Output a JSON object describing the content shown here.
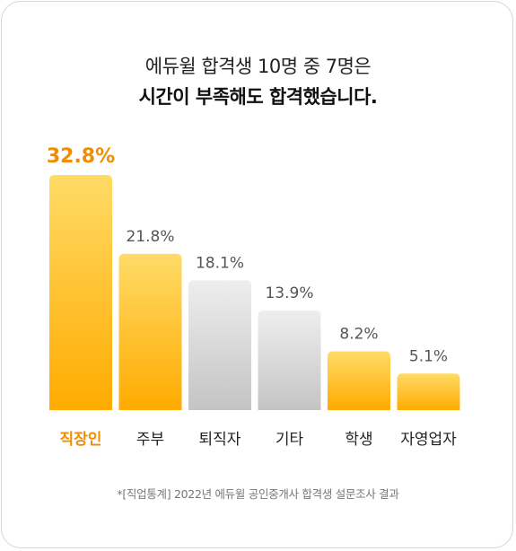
{
  "title_line1": "에듀윌 합격생 10명 중 7명은",
  "title_line2": "시간이 부족해도 합격했습니다.",
  "footnote": "*[직업통계] 2022년 에듀윌 공인중개사 합격생 설문조사 결과",
  "colors": {
    "highlight_text": "#f28c00",
    "value_text": "#555555",
    "label_text": "#222222",
    "yellow_top": "#ffdb66",
    "yellow_bottom": "#ffab00",
    "gray_top": "#eeeeee",
    "gray_bottom": "#c4c4c4"
  },
  "chart_data": {
    "type": "bar",
    "categories": [
      "직장인",
      "주부",
      "퇴직자",
      "기타",
      "학생",
      "자영업자"
    ],
    "values": [
      32.8,
      21.8,
      18.1,
      13.9,
      8.2,
      5.1
    ],
    "value_labels": [
      "32.8%",
      "21.8%",
      "18.1%",
      "13.9%",
      "8.2%",
      "5.1%"
    ],
    "bar_colors": [
      "yellow",
      "yellow",
      "gray",
      "gray",
      "yellow",
      "yellow"
    ],
    "highlight_index": 0,
    "title": "",
    "xlabel": "",
    "ylabel": "",
    "ylim": [
      0,
      32.8
    ],
    "grid": false,
    "legend": false
  }
}
